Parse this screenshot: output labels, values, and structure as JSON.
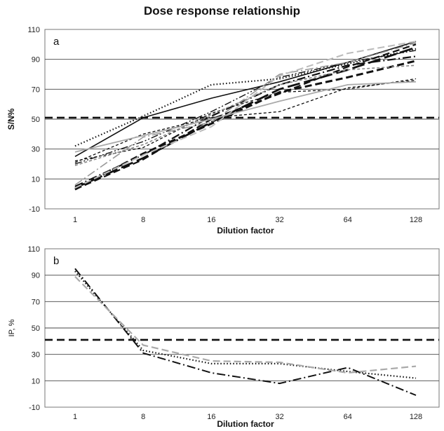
{
  "title": "Dose response relationship",
  "chart_data": [
    {
      "type": "line",
      "panel_label": "a",
      "xlabel": "Dilution factor",
      "ylabel": "S/N%",
      "categories": [
        "1",
        "8",
        "16",
        "32",
        "64",
        "128"
      ],
      "ylim": [
        -10,
        110
      ],
      "yticks": [
        -10,
        10,
        30,
        50,
        70,
        90,
        110
      ],
      "grid": true,
      "reference_line": 51,
      "series": [
        {
          "values": [
            25,
            51,
            64,
            75,
            88,
            102
          ],
          "color": "#111111",
          "dash": "solid",
          "width": 1.6
        },
        {
          "values": [
            32,
            52,
            73,
            77,
            87,
            97
          ],
          "color": "#111111",
          "dash": "dot",
          "width": 2.2
        },
        {
          "values": [
            21,
            40,
            51,
            55,
            71,
            76
          ],
          "color": "#111111",
          "dash": "dash-short",
          "width": 1.3
        },
        {
          "values": [
            5,
            26,
            52,
            73,
            86,
            92
          ],
          "color": "#111111",
          "dash": "dashdot",
          "width": 2.2
        },
        {
          "values": [
            4,
            24,
            48,
            70,
            83,
            98
          ],
          "color": "#111111",
          "dash": "long-dash",
          "width": 2.8
        },
        {
          "values": [
            3,
            23,
            50,
            67,
            85,
            100
          ],
          "color": "#111111",
          "dash": "dash",
          "width": 2.2
        },
        {
          "values": [
            20,
            35,
            55,
            78,
            88,
            96
          ],
          "color": "#111111",
          "dash": "dash-dot-dot",
          "width": 1.4
        },
        {
          "values": [
            3,
            27,
            47,
            68,
            78,
            89
          ],
          "color": "#111111",
          "dash": "dash",
          "width": 3
        },
        {
          "values": [
            22,
            31,
            54,
            68,
            70,
            77
          ],
          "color": "#111111",
          "dash": "dash-short",
          "width": 1.3
        },
        {
          "values": [
            6,
            38,
            48,
            80,
            88,
            101
          ],
          "color": "#999999",
          "dash": "dashdot",
          "width": 1.6
        },
        {
          "values": [
            19,
            33,
            53,
            73,
            83,
            86
          ],
          "color": "#888888",
          "dash": "dash-short",
          "width": 1.6
        },
        {
          "values": [
            28,
            39,
            50,
            62,
            73,
            75
          ],
          "color": "#aaaaaa",
          "dash": "solid",
          "width": 1.8
        },
        {
          "values": [
            4,
            26,
            45,
            79,
            94,
            102
          ],
          "color": "#bbbbbb",
          "dash": "dash",
          "width": 2
        }
      ]
    },
    {
      "type": "line",
      "panel_label": "b",
      "xlabel": "Dilution factor",
      "ylabel": "IP, %",
      "categories": [
        "1",
        "8",
        "16",
        "32",
        "64",
        "128"
      ],
      "ylim": [
        -10,
        110
      ],
      "yticks": [
        -10,
        10,
        30,
        50,
        70,
        90,
        110
      ],
      "grid": true,
      "reference_line": 41,
      "series": [
        {
          "values": [
            95,
            31,
            16,
            8,
            20,
            -1
          ],
          "color": "#111111",
          "dash": "dashdot",
          "width": 2
        },
        {
          "values": [
            93,
            33,
            23,
            23,
            17,
            12
          ],
          "color": "#111111",
          "dash": "dot",
          "width": 2.2
        },
        {
          "values": [
            89,
            37,
            25,
            24,
            16,
            21
          ],
          "color": "#aaaaaa",
          "dash": "dash",
          "width": 2.2
        }
      ]
    }
  ]
}
